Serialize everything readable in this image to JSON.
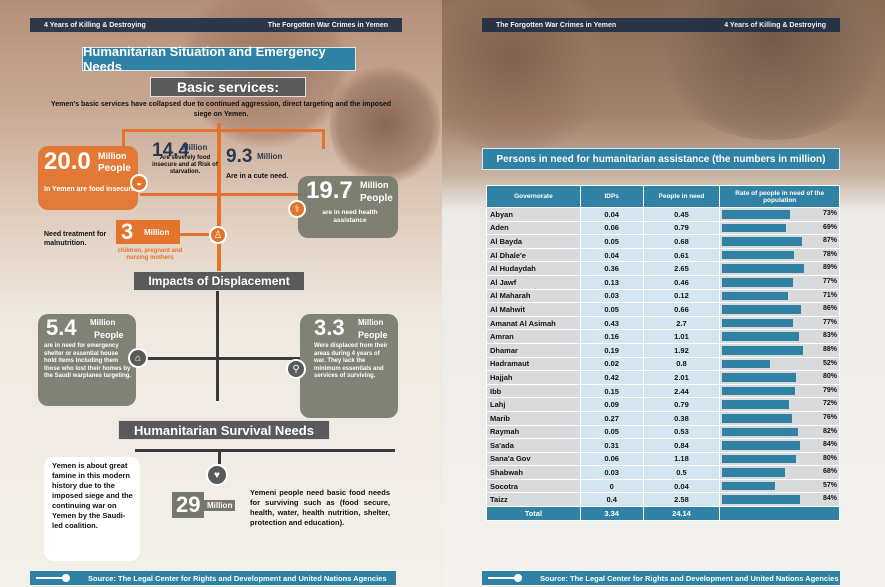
{
  "header": {
    "left_page_left": "4 Years of Killing & Destroying",
    "left_page_right": "The Forgotten War Crimes in Yemen",
    "right_page_left": "The Forgotten War Crimes in Yemen",
    "right_page_right": "4 Years of Killing & Destroying"
  },
  "left": {
    "title": "Humanitarian Situation and Emergency Needs",
    "basic": {
      "title": "Basic services:",
      "intro": "Yemen’s basic services have collapsed due to continued aggression, direct targeting and the imposed siege on Yemen.",
      "s1": {
        "num": "20.0",
        "unit1": "Million",
        "unit2": "People",
        "desc": "In Yemen are food insecure."
      },
      "s2": {
        "num": "14.4",
        "unit": "Million",
        "desc": "Are severely food insecure and at Risk of starvation."
      },
      "s3": {
        "num": "9.3",
        "unit": "Million",
        "desc": "Are in a cute need."
      },
      "s4": {
        "num": "19.7",
        "unit1": "Million",
        "unit2": "People",
        "desc": "are in need health assistance"
      },
      "s5": {
        "label": "Need treatment for malnutrition.",
        "num": "3",
        "unit": "Million",
        "desc": "children, pregnant and nursing mothers"
      }
    },
    "displacement": {
      "title": "Impacts of Displacement",
      "d1": {
        "num": "5.4",
        "unit1": "Million",
        "unit2": "People",
        "desc": "are in need for emergency shelter or essential house hold items Including them those who lost their homes by the Saudi warplanes targeting."
      },
      "d2": {
        "num": "3.3",
        "unit1": "Million",
        "unit2": "People",
        "desc": "Were displaced from their areas during 4 years of war. They lack the minimum essentials and services of surviving."
      }
    },
    "survival": {
      "title": "Humanitarian Survival Needs",
      "famine": "Yemen is about great famine in this modern history due to the imposed siege and the continuing war on Yemen by the Saudi-led coalition.",
      "num": "29",
      "unit": "Million",
      "desc": "Yemeni people need basic food needs for surviving such as (food secure, health, water, health nutrition, shelter, protection and education)."
    },
    "source": "Source: The Legal Center for Rights and Development and United Nations Agencies"
  },
  "right": {
    "table_title": "Persons in need for humanitarian assistance (the numbers in million)",
    "headers": [
      "Governorate",
      "IDPs",
      "People in need",
      "Rate of people in need of the population"
    ],
    "rows": [
      [
        "Abyan",
        "0.04",
        "0.45",
        "73%"
      ],
      [
        "Aden",
        "0.06",
        "0.79",
        "69%"
      ],
      [
        "Al Bayda",
        "0.05",
        "0.68",
        "87%"
      ],
      [
        "Al Dhale'e",
        "0.04",
        "0.61",
        "78%"
      ],
      [
        "Al Hudaydah",
        "0.36",
        "2.65",
        "89%"
      ],
      [
        "Al Jawf",
        "0.13",
        "0.46",
        "77%"
      ],
      [
        "Al Maharah",
        "0.03",
        "0.12",
        "71%"
      ],
      [
        "Al Mahwit",
        "0.05",
        "0.66",
        "86%"
      ],
      [
        "Amanat Al Asimah",
        "0.43",
        "2.7",
        "77%"
      ],
      [
        "Amran",
        "0.16",
        "1.01",
        "83%"
      ],
      [
        "Dhamar",
        "0.19",
        "1.92",
        "88%"
      ],
      [
        "Hadramaut",
        "0.02",
        "0.8",
        "52%"
      ],
      [
        "Hajjah",
        "0.42",
        "2.01",
        "80%"
      ],
      [
        "Ibb",
        "0.15",
        "2.44",
        "79%"
      ],
      [
        "Lahj",
        "0.09",
        "0.79",
        "72%"
      ],
      [
        "Marib",
        "0.27",
        "0.38",
        "76%"
      ],
      [
        "Raymah",
        "0.05",
        "0.53",
        "82%"
      ],
      [
        "Sa'ada",
        "0.31",
        "0.84",
        "84%"
      ],
      [
        "Sana'a Gov",
        "0.06",
        "1.18",
        "80%"
      ],
      [
        "Shabwah",
        "0.03",
        "0.5",
        "68%"
      ],
      [
        "Socotra",
        "0",
        "0.04",
        "57%"
      ],
      [
        "Taizz",
        "0.4",
        "2.58",
        "84%"
      ]
    ],
    "total": [
      "Total",
      "3.34",
      "24.14",
      ""
    ],
    "source": "Source: The Legal Center for Rights and Development and United Nations Agencies"
  },
  "colors": {
    "accent_blue": "#2f82a3",
    "orange": "#e4732c",
    "box_grey": "#76786b"
  }
}
